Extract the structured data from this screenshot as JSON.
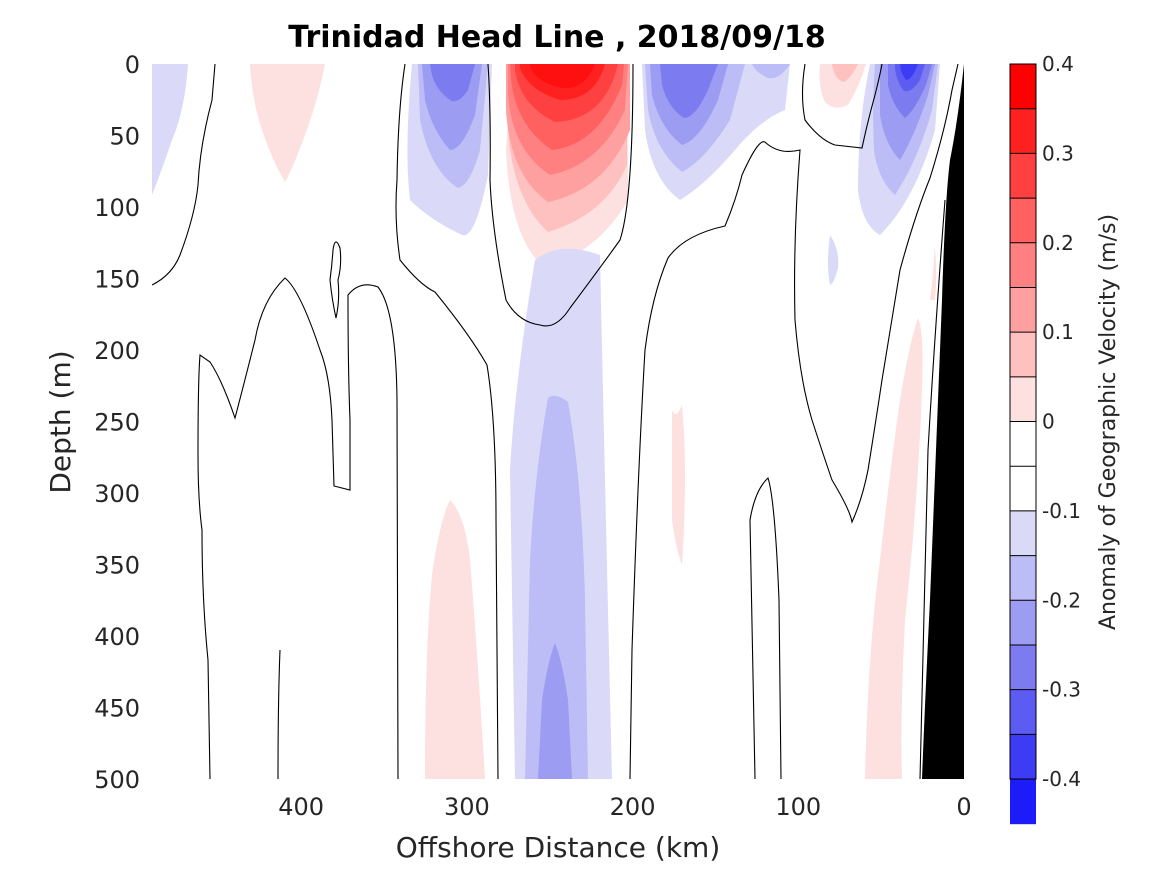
{
  "chart_data": {
    "type": "heatmap",
    "title": "Trinidad Head Line , 2018/09/18",
    "xlabel": "Offshore Distance (km)",
    "ylabel": "Depth (m)",
    "xlim": [
      490,
      0
    ],
    "ylim": [
      0,
      500
    ],
    "x_reversed": true,
    "y_reversed": true,
    "xticks": [
      "400",
      "300",
      "200",
      "100",
      "0"
    ],
    "xtick_values": [
      400,
      300,
      200,
      100,
      0
    ],
    "yticks": [
      "0",
      "50",
      "100",
      "150",
      "200",
      "250",
      "300",
      "350",
      "400",
      "450",
      "500"
    ],
    "ytick_values": [
      0,
      50,
      100,
      150,
      200,
      250,
      300,
      350,
      400,
      450,
      500
    ],
    "colorbar": {
      "label": "Anomaly of Geographic Velocity (m/s)",
      "range": [
        -0.4,
        0.4
      ],
      "step": 0.05,
      "ticks": [
        "0.4",
        "0.3",
        "0.2",
        "0.1",
        "0",
        "-0.1",
        "-0.2",
        "-0.3",
        "-0.4"
      ],
      "tick_values": [
        0.4,
        0.3,
        0.2,
        0.1,
        0,
        -0.1,
        -0.2,
        -0.3,
        -0.4
      ],
      "colors": [
        "#ff0000",
        "#ff2020",
        "#ff4040",
        "#ff6060",
        "#ff8080",
        "#ffa0a0",
        "#ffc0c0",
        "#fde0e0",
        "#ffffff",
        "#ffffff",
        "#dadaf8",
        "#bcbcf6",
        "#9c9cf2",
        "#7c7cf0",
        "#5c5cf2",
        "#3c3cf4",
        "#1c1cfa"
      ]
    },
    "features": [
      {
        "name": "Near-surface positive core",
        "sign": "positive",
        "x_range": [
          275,
          215
        ],
        "depth_range": [
          0,
          145
        ],
        "peak": 0.33
      },
      {
        "name": "Surface negative core offshore",
        "sign": "negative",
        "x_range": [
          335,
          285
        ],
        "depth_range": [
          0,
          120
        ],
        "peak": -0.23
      },
      {
        "name": "Surface negative core mid",
        "sign": "negative",
        "x_range": [
          215,
          150
        ],
        "depth_range": [
          0,
          105
        ],
        "peak": -0.23
      },
      {
        "name": "Surface negative core nearshore",
        "sign": "negative",
        "x_range": [
          70,
          20
        ],
        "depth_range": [
          0,
          120
        ],
        "peak": -0.28
      },
      {
        "name": "Weak positive surface patch",
        "sign": "positive",
        "x_range": [
          440,
          390
        ],
        "depth_range": [
          0,
          80
        ],
        "peak": 0.08
      },
      {
        "name": "Weak positive surface patch nearshore",
        "sign": "positive",
        "x_range": [
          100,
          65
        ],
        "depth_range": [
          0,
          35
        ],
        "peak": 0.08
      },
      {
        "name": "Deep negative core",
        "sign": "negative",
        "x_range": [
          275,
          215
        ],
        "depth_range": [
          245,
          500
        ],
        "peak": -0.15
      },
      {
        "name": "Deep positive band",
        "sign": "positive",
        "x_range": [
          330,
          285
        ],
        "depth_range": [
          305,
          500
        ],
        "peak": 0.08
      },
      {
        "name": "Nearshore deep positive band",
        "sign": "positive",
        "x_range": [
          65,
          25
        ],
        "depth_range": [
          120,
          500
        ],
        "peak": 0.08
      }
    ]
  }
}
